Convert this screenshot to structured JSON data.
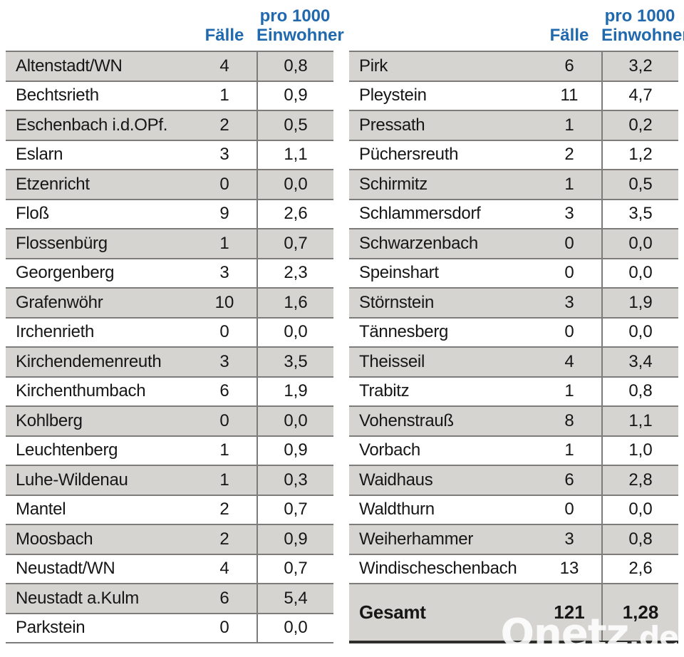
{
  "chart_data": {
    "type": "table",
    "columns": [
      "",
      "Fälle",
      "pro 1000 Einwohner"
    ],
    "tables": [
      {
        "rows": [
          [
            "Altenstadt/WN",
            "4",
            "0,8"
          ],
          [
            "Bechtsrieth",
            "1",
            "0,9"
          ],
          [
            "Eschenbach i.d.OPf.",
            "2",
            "0,5"
          ],
          [
            "Eslarn",
            "3",
            "1,1"
          ],
          [
            "Etzenricht",
            "0",
            "0,0"
          ],
          [
            "Floß",
            "9",
            "2,6"
          ],
          [
            "Flossenbürg",
            "1",
            "0,7"
          ],
          [
            "Georgenberg",
            "3",
            "2,3"
          ],
          [
            "Grafenwöhr",
            "10",
            "1,6"
          ],
          [
            "Irchenrieth",
            "0",
            "0,0"
          ],
          [
            "Kirchendemenreuth",
            "3",
            "3,5"
          ],
          [
            "Kirchenthumbach",
            "6",
            "1,9"
          ],
          [
            "Kohlberg",
            "0",
            "0,0"
          ],
          [
            "Leuchtenberg",
            "1",
            "0,9"
          ],
          [
            "Luhe-Wildenau",
            "1",
            "0,3"
          ],
          [
            "Mantel",
            "2",
            "0,7"
          ],
          [
            "Moosbach",
            "2",
            "0,9"
          ],
          [
            "Neustadt/WN",
            "4",
            "0,7"
          ],
          [
            "Neustadt a.Kulm",
            "6",
            "5,4"
          ],
          [
            "Parkstein",
            "0",
            "0,0"
          ]
        ]
      },
      {
        "rows": [
          [
            "Pirk",
            "6",
            "3,2"
          ],
          [
            "Pleystein",
            "11",
            "4,7"
          ],
          [
            "Pressath",
            "1",
            "0,2"
          ],
          [
            "Püchersreuth",
            "2",
            "1,2"
          ],
          [
            "Schirmitz",
            "1",
            "0,5"
          ],
          [
            "Schlammersdorf",
            "3",
            "3,5"
          ],
          [
            "Schwarzenbach",
            "0",
            "0,0"
          ],
          [
            "Speinshart",
            "0",
            "0,0"
          ],
          [
            "Störnstein",
            "3",
            "1,9"
          ],
          [
            "Tännesberg",
            "0",
            "0,0"
          ],
          [
            "Theisseil",
            "4",
            "3,4"
          ],
          [
            "Trabitz",
            "1",
            "0,8"
          ],
          [
            "Vohenstrauß",
            "8",
            "1,1"
          ],
          [
            "Vorbach",
            "1",
            "1,0"
          ],
          [
            "Waidhaus",
            "6",
            "2,8"
          ],
          [
            "Waldthurn",
            "0",
            "0,0"
          ],
          [
            "Weiherhammer",
            "3",
            "0,8"
          ],
          [
            "Windischeschenbach",
            "13",
            "2,6"
          ]
        ],
        "total": {
          "label": "Gesamt",
          "cases": "121",
          "rate": "1,28"
        }
      }
    ]
  },
  "header": {
    "cases_label": "Fälle",
    "rate_label_line1": "pro 1000",
    "rate_label_line2": "Einwohner"
  },
  "watermark": {
    "brand": "Onetz",
    "tld": ".de"
  },
  "colors": {
    "header_blue": "#2169ae",
    "row_gray": "#d5d4d1",
    "line_gray": "#7d7c7a",
    "text_black": "#161616"
  }
}
